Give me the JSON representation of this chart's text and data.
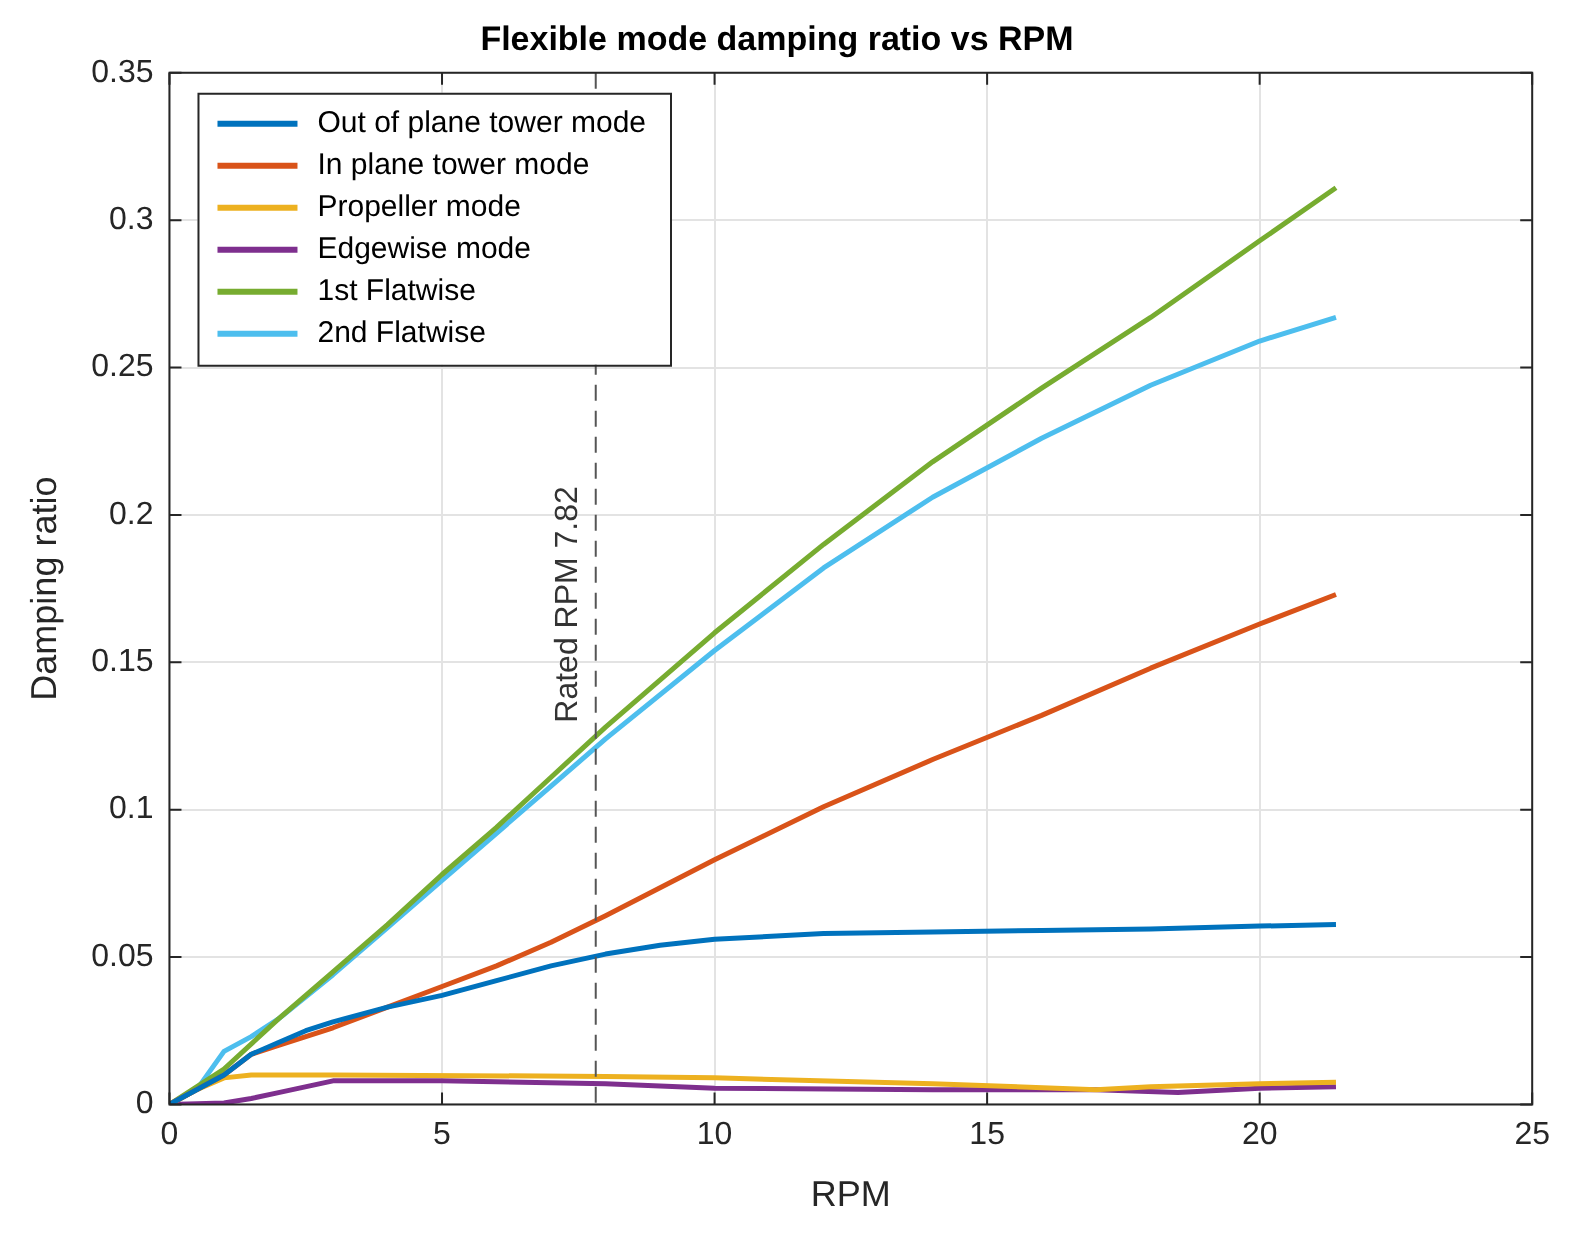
{
  "chart_data": {
    "type": "line",
    "title": "Flexible mode damping ratio vs RPM",
    "xlabel": "RPM",
    "ylabel": "Damping ratio",
    "xlim": [
      0,
      25
    ],
    "xticks": [
      0,
      5,
      10,
      15,
      20,
      25
    ],
    "ylim": [
      0,
      0.35
    ],
    "yticks": [
      0,
      0.05,
      0.1,
      0.15,
      0.2,
      0.25,
      0.3,
      0.35
    ],
    "grid": true,
    "legend": "top left",
    "marker": "none",
    "line_style": "solid",
    "ref_lines": [
      {
        "axis": "x",
        "value": 7.82,
        "label": "Rated RPM 7.82",
        "color": "#555555",
        "line_style": "dashed"
      }
    ],
    "series": [
      {
        "name": "Out of plane tower mode",
        "color": "#0072bd",
        "x": [
          0,
          1,
          1.5,
          2,
          2.5,
          3,
          4,
          5,
          6,
          7,
          8,
          9,
          10,
          12,
          14,
          16,
          18,
          20,
          21.4
        ],
        "values": [
          0,
          0.01,
          0.017,
          0.021,
          0.025,
          0.028,
          0.033,
          0.037,
          0.042,
          0.047,
          0.051,
          0.054,
          0.056,
          0.058,
          0.0585,
          0.059,
          0.0595,
          0.0605,
          0.061
        ]
      },
      {
        "name": "In plane tower mode",
        "color": "#d95319",
        "x": [
          0,
          1,
          1.5,
          2,
          3,
          4,
          5,
          6,
          7,
          8,
          10,
          12,
          14,
          16,
          18,
          20,
          21.4
        ],
        "values": [
          0,
          0.01,
          0.017,
          0.02,
          0.026,
          0.033,
          0.04,
          0.047,
          0.055,
          0.064,
          0.083,
          0.101,
          0.117,
          0.132,
          0.148,
          0.163,
          0.173
        ]
      },
      {
        "name": "Propeller mode",
        "color": "#edb120",
        "x": [
          0,
          0.5,
          1,
          1.5,
          3,
          8,
          10,
          14,
          17,
          18,
          20,
          21.4
        ],
        "values": [
          0,
          0.005,
          0.009,
          0.01,
          0.01,
          0.0095,
          0.009,
          0.007,
          0.005,
          0.006,
          0.007,
          0.0075
        ]
      },
      {
        "name": "Edgewise mode",
        "color": "#7e2f8e",
        "x": [
          0,
          1,
          1.5,
          2,
          3,
          5,
          8,
          10,
          14,
          17,
          18.5,
          20,
          21.4
        ],
        "values": [
          0,
          0.0005,
          0.002,
          0.004,
          0.008,
          0.008,
          0.007,
          0.0055,
          0.005,
          0.005,
          0.004,
          0.0055,
          0.006
        ]
      },
      {
        "name": "1st Flatwise",
        "color": "#77ac30",
        "x": [
          0,
          1,
          2,
          3,
          4,
          5,
          6,
          7,
          8,
          10,
          12,
          14,
          16,
          18,
          20,
          21.4
        ],
        "values": [
          0,
          0.012,
          0.029,
          0.045,
          0.061,
          0.078,
          0.094,
          0.111,
          0.128,
          0.16,
          0.19,
          0.218,
          0.243,
          0.267,
          0.293,
          0.311
        ]
      },
      {
        "name": "2nd Flatwise",
        "color": "#4dbeee",
        "x": [
          0,
          0.5,
          1,
          1.5,
          2,
          3,
          4,
          5,
          6,
          7,
          8,
          10,
          12,
          14,
          16,
          18,
          20,
          21.4
        ],
        "values": [
          0,
          0.005,
          0.018,
          0.023,
          0.029,
          0.044,
          0.06,
          0.076,
          0.092,
          0.108,
          0.124,
          0.154,
          0.182,
          0.206,
          0.226,
          0.244,
          0.259,
          0.267
        ]
      }
    ]
  }
}
